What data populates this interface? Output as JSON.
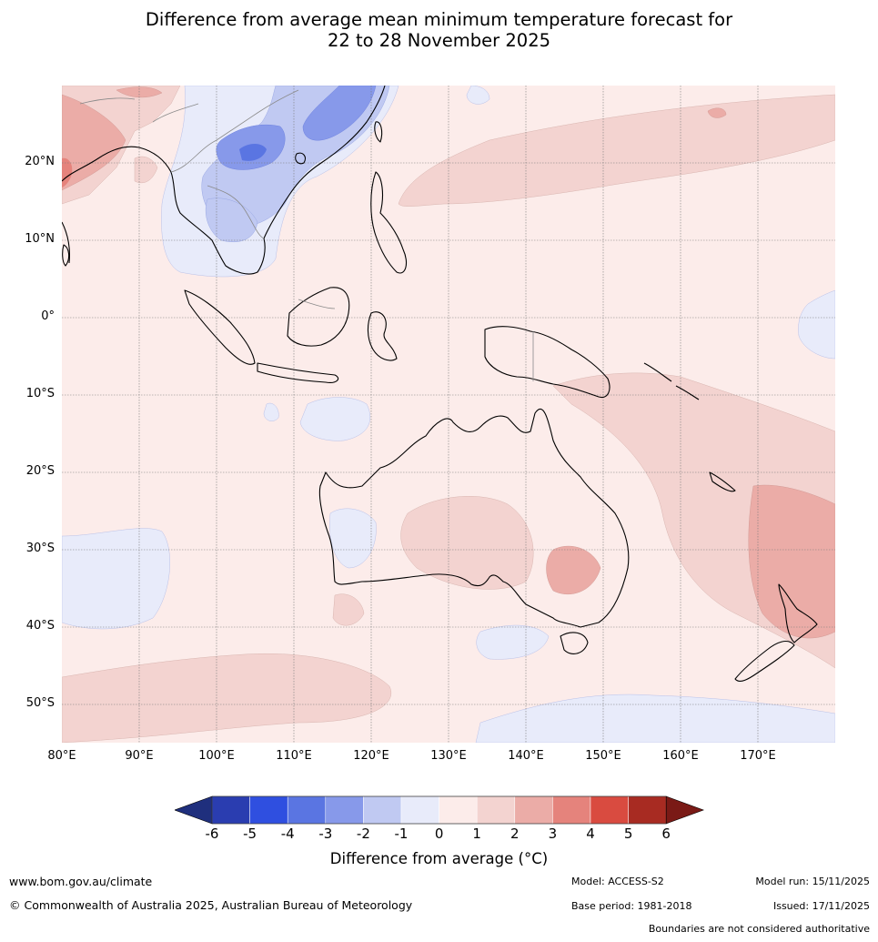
{
  "title": {
    "line1": "Difference from average mean minimum temperature forecast for",
    "line2": "22 to 28 November 2025"
  },
  "map": {
    "name": "Indo-Pacific and Australia region",
    "lat_range": [
      -55,
      30
    ],
    "lon_range": [
      80,
      180
    ],
    "lat_labels": [
      "20°N",
      "10°N",
      "0°",
      "10°S",
      "20°S",
      "30°S",
      "40°S",
      "50°S"
    ],
    "lon_labels": [
      "80°E",
      "90°E",
      "100°E",
      "110°E",
      "120°E",
      "130°E",
      "140°E",
      "150°E",
      "160°E",
      "170°E"
    ]
  },
  "legend": {
    "ticks": [
      "-6",
      "-5",
      "-4",
      "-3",
      "-2",
      "-1",
      "0",
      "1",
      "2",
      "3",
      "4",
      "5",
      "6"
    ],
    "colors": [
      "#1f2f7d",
      "#2a3db0",
      "#2f4fe0",
      "#5a75e2",
      "#8799ea",
      "#c0c9f2",
      "#e8ebfa",
      "#fcecea",
      "#f3d3d0",
      "#ebaca7",
      "#e5837c",
      "#d94b40",
      "#a82b22",
      "#7a1a16"
    ],
    "label": "Difference from average (°C)"
  },
  "footer": {
    "website": "www.bom.gov.au/climate",
    "copyright": "© Commonwealth of Australia 2025, Australian Bureau of Meteorology",
    "model": "Model: ACCESS-S2",
    "base_period": "Base period: 1981-2018",
    "model_run": "Model run: 15/11/2025",
    "issued": "Issued: 17/11/2025",
    "disclaimer": "Boundaries are not considered authoritative"
  }
}
